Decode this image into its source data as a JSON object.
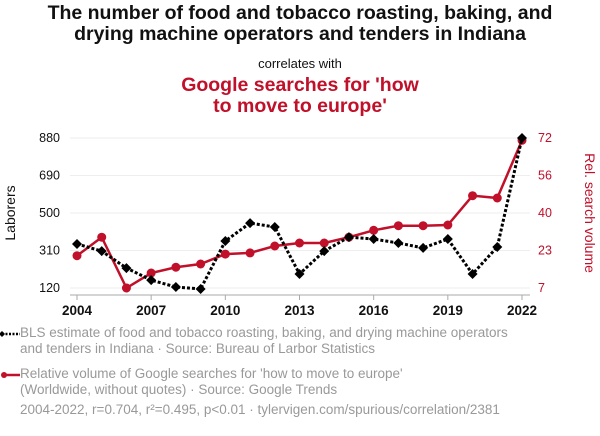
{
  "title_line1": "The number of food and tobacco roasting, baking, and",
  "title_line2": "drying machine operators and tenders in Indiana",
  "correlates": "correlates with",
  "subtitle_line1": "Google searches for 'how",
  "subtitle_line2": "to move to europe'",
  "legend": [
    {
      "line1": "BLS estimate of food and tobacco roasting, baking, and drying machine operators",
      "line2": "and tenders in Indiana · Source: Bureau of Larbor Statistics"
    },
    {
      "line1": "Relative volume of Google searches for 'how to move to europe'",
      "line2": "(Worldwide, without quotes) · Source: Google Trends"
    }
  ],
  "footer": "2004-2022, r=0.704, r²=0.495, p<0.01 · tylervigen.com/spurious/correlation/2381",
  "colors": {
    "series1": "#000000",
    "series2": "#c0102a"
  },
  "chart_data": {
    "type": "line",
    "x": [
      2004,
      2005,
      2006,
      2007,
      2008,
      2009,
      2010,
      2011,
      2012,
      2013,
      2014,
      2015,
      2016,
      2017,
      2018,
      2019,
      2020,
      2021,
      2022
    ],
    "x_ticks": [
      "2004",
      "2007",
      "2010",
      "2013",
      "2016",
      "2019",
      "2022"
    ],
    "xlim": [
      2004,
      2022
    ],
    "ylabel": "Laborers",
    "y_ticks": [
      "880",
      "690",
      "500",
      "310",
      "120"
    ],
    "ylim": [
      120,
      880
    ],
    "y2label": "Rel. search volume",
    "y2_ticks": [
      "72",
      "56",
      "40",
      "23",
      "7"
    ],
    "y2lim": [
      7,
      72
    ],
    "grid": true,
    "series": [
      {
        "name": "BLS estimate of food and tobacco roasting, baking, and drying machine operators and tenders in Indiana",
        "axis": "left",
        "style": "dotted",
        "marker": "diamond",
        "values": [
          343,
          307,
          221,
          160,
          125,
          115,
          358,
          449,
          429,
          191,
          307,
          378,
          368,
          348,
          323,
          368,
          191,
          328,
          880
        ]
      },
      {
        "name": "Relative volume of Google searches for 'how to move to europe'",
        "axis": "right",
        "style": "solid",
        "marker": "circle",
        "values": [
          21,
          29,
          7,
          13.5,
          16,
          17.4,
          21.7,
          22.2,
          25.2,
          26.5,
          26.5,
          29,
          32,
          34,
          34,
          34.3,
          47,
          46,
          71
        ]
      }
    ]
  }
}
